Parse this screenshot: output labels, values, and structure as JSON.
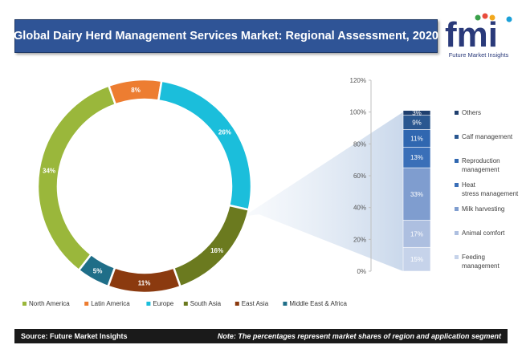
{
  "title": "Global Dairy Herd Management  Services Market: Regional Assessment, 2020",
  "logo": {
    "text": "fmi",
    "tagline": "Future Market Insights"
  },
  "footer": {
    "source": "Source: Future Market Insights",
    "note": "Note: The percentages represent market shares of region and application segment"
  },
  "chart_data": [
    {
      "type": "pie",
      "variant": "donut",
      "title": "",
      "categories": [
        "North America",
        "Latin America",
        "Europe",
        "South Asia",
        "East Asia",
        "Middle East & Africa"
      ],
      "values": [
        34,
        8,
        26,
        16,
        11,
        5
      ],
      "labels": [
        "34%",
        "8%",
        "26%",
        "16%",
        "11%",
        "5%"
      ],
      "colors": [
        "#9ab73b",
        "#ed7d31",
        "#1bbedb",
        "#6b7a1f",
        "#8b3a0f",
        "#1f6e88"
      ],
      "legend_position": "bottom"
    },
    {
      "type": "bar",
      "variant": "stacked-100",
      "title": "",
      "categories": [
        "Feeding management",
        "Animal comfort",
        "Milk harvesting",
        "Heat stress management",
        "Reproduction management",
        "Calf management",
        "Others"
      ],
      "legend_labels": [
        "Others",
        "Calf management",
        "Reproduction management",
        "Heat stress management",
        "Milk harvesting",
        "Animal comfort",
        "Feeding management"
      ],
      "values": [
        15,
        17,
        33,
        13,
        11,
        9,
        3
      ],
      "labels": [
        "15%",
        "17%",
        "33%",
        "13%",
        "11%",
        "9%",
        "3%"
      ],
      "colors": [
        "#c6d3ea",
        "#adbfe0",
        "#7f9dcf",
        "#3a6fb8",
        "#3067b0",
        "#2a5790",
        "#1f3f6e"
      ],
      "ylim": [
        0,
        120
      ],
      "yticks": [
        "0%",
        "20%",
        "40%",
        "60%",
        "80%",
        "100%",
        "120%"
      ],
      "grid": false,
      "legend_position": "right"
    }
  ]
}
